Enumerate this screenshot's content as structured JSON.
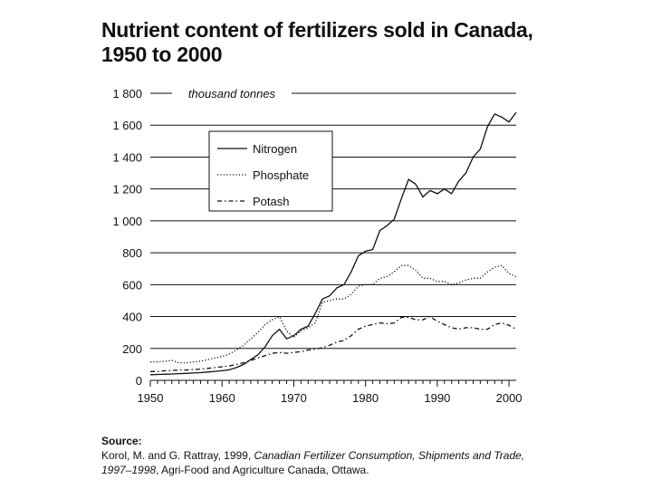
{
  "title_line1": "Nutrient content of fertilizers sold in Canada,",
  "title_line2": "1950 to 2000",
  "chart_data": {
    "type": "line",
    "title": "Nutrient content of fertilizers sold in Canada, 1950 to 2000",
    "unit_label": "thousand tonnes",
    "xlim": [
      1950,
      2001
    ],
    "ylim": [
      0,
      1800
    ],
    "x_ticks": [
      1950,
      1960,
      1970,
      1980,
      1990,
      2000
    ],
    "y_ticks": [
      0,
      200,
      400,
      600,
      800,
      1000,
      1200,
      1400,
      1600,
      1800
    ],
    "y_tick_labels": [
      "0",
      "200",
      "400",
      "600",
      "800",
      "1 000",
      "1 200",
      "1 400",
      "1 600",
      "1 800"
    ],
    "grid": "horizontal",
    "legend_position": "upper-left",
    "x": [
      1950,
      1951,
      1952,
      1953,
      1954,
      1955,
      1956,
      1957,
      1958,
      1959,
      1960,
      1961,
      1962,
      1963,
      1964,
      1965,
      1966,
      1967,
      1968,
      1969,
      1970,
      1971,
      1972,
      1973,
      1974,
      1975,
      1976,
      1977,
      1978,
      1979,
      1980,
      1981,
      1982,
      1983,
      1984,
      1985,
      1986,
      1987,
      1988,
      1989,
      1990,
      1991,
      1992,
      1993,
      1994,
      1995,
      1996,
      1997,
      1998,
      1999,
      2000,
      2001
    ],
    "series": [
      {
        "name": "Nitrogen",
        "style": "solid",
        "values": [
          35,
          37,
          38,
          40,
          42,
          44,
          46,
          48,
          52,
          56,
          60,
          66,
          80,
          100,
          130,
          160,
          210,
          280,
          320,
          260,
          280,
          320,
          340,
          420,
          510,
          530,
          580,
          600,
          680,
          780,
          810,
          820,
          940,
          970,
          1010,
          1140,
          1260,
          1230,
          1150,
          1190,
          1170,
          1200,
          1170,
          1250,
          1300,
          1400,
          1450,
          1590,
          1670,
          1650,
          1620,
          1680
        ]
      },
      {
        "name": "Phosphate",
        "style": "dotted",
        "values": [
          115,
          115,
          120,
          125,
          110,
          110,
          115,
          120,
          130,
          140,
          150,
          165,
          190,
          220,
          260,
          300,
          350,
          380,
          400,
          310,
          270,
          310,
          330,
          360,
          490,
          500,
          510,
          510,
          540,
          590,
          600,
          600,
          640,
          650,
          680,
          720,
          720,
          690,
          640,
          640,
          620,
          620,
          600,
          610,
          630,
          640,
          640,
          680,
          710,
          720,
          670,
          650
        ]
      },
      {
        "name": "Potash",
        "style": "dash-dot",
        "values": [
          55,
          55,
          60,
          62,
          65,
          65,
          68,
          70,
          75,
          80,
          85,
          90,
          100,
          110,
          125,
          140,
          155,
          170,
          175,
          170,
          175,
          180,
          190,
          195,
          205,
          220,
          240,
          250,
          280,
          320,
          340,
          350,
          360,
          355,
          360,
          395,
          395,
          380,
          380,
          400,
          370,
          350,
          330,
          320,
          330,
          330,
          320,
          320,
          350,
          360,
          345,
          320
        ]
      }
    ]
  },
  "source": {
    "heading": "Source:",
    "authors": "Korol, M. and G. Rattray, 1999, ",
    "publication": "Canadian Fertilizer Consumption, Shipments and Trade,",
    "years": "1997–1998",
    "publisher": ", Agri-Food and Agriculture Canada, Ottawa."
  }
}
